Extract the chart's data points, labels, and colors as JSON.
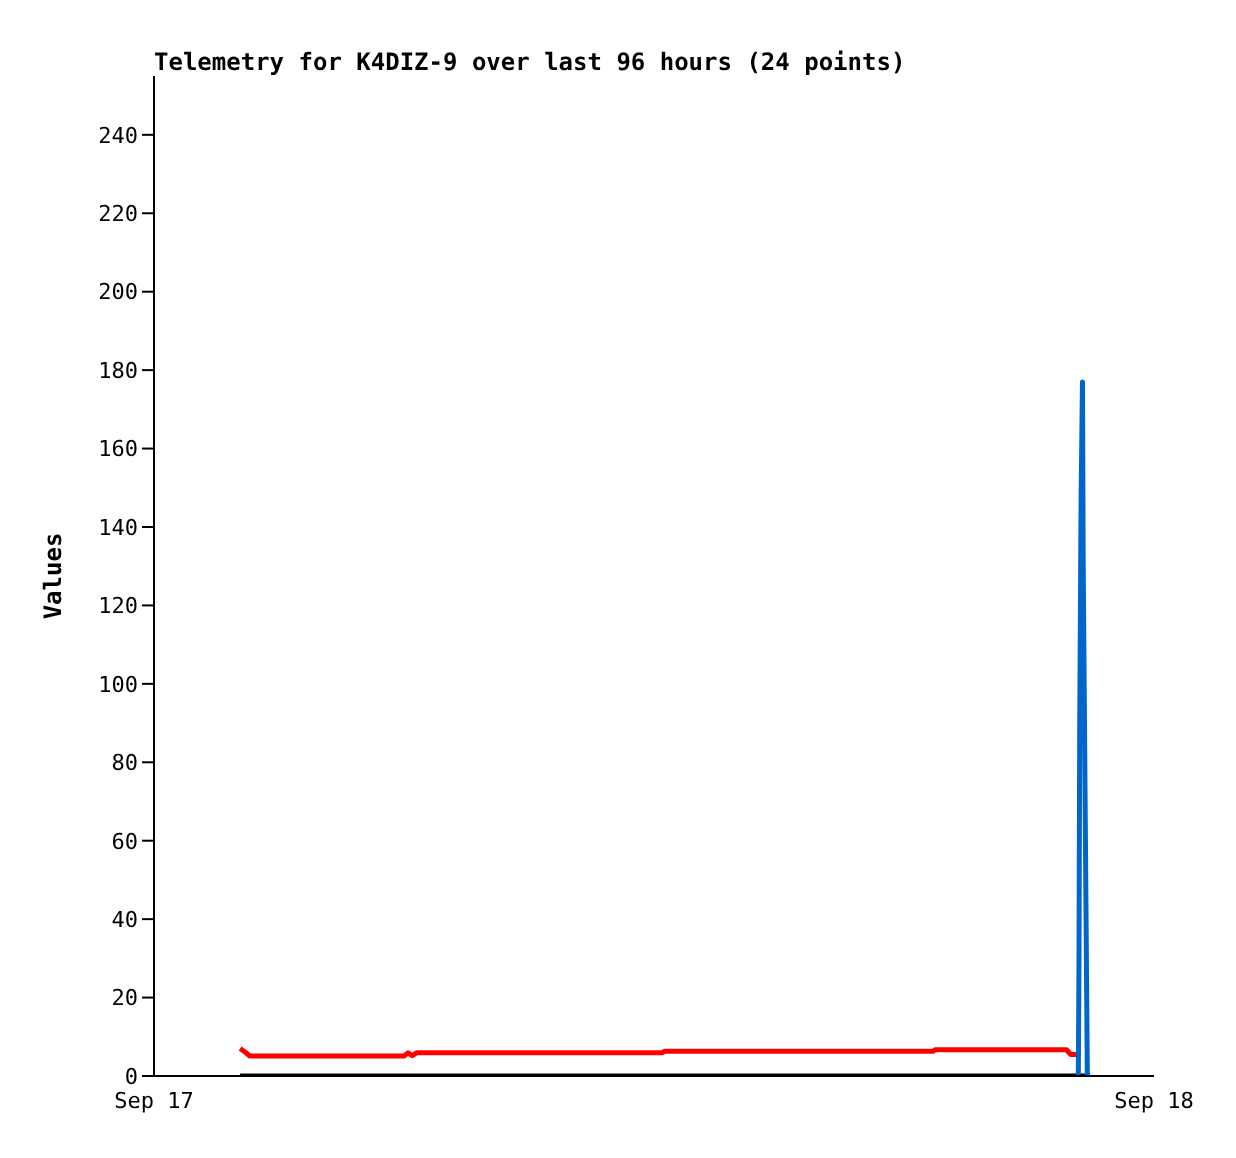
{
  "chart_data": {
    "type": "line",
    "title": "Telemetry for K4DIZ-9 over last 96 hours (24 points)",
    "ylabel": "Values",
    "xlim": [
      "--09-17",
      "--09-18"
    ],
    "xticks": [
      {
        "value": "--09-17",
        "label": "Sep 17"
      },
      {
        "value": "--09-18",
        "label": "Sep 18"
      }
    ],
    "ylim": [
      0,
      255
    ],
    "yticks": [
      0,
      20,
      40,
      60,
      80,
      100,
      120,
      140,
      160,
      180,
      200,
      220,
      240
    ],
    "marker": "none",
    "line_style": "solid",
    "series": [
      {
        "color": "#000000",
        "x": [
          "--09-17T02:04",
          "--09-17T22:28"
        ],
        "values": [
          0,
          0
        ]
      },
      {
        "color": "#ff0000",
        "x": [
          "--09-17T02:04",
          "--09-17T02:12",
          "--09-17T02:18",
          "--09-17T06:00",
          "--09-17T06:06",
          "--09-17T06:12",
          "--09-17T06:18",
          "--09-17T12:12",
          "--09-17T12:15",
          "--09-17T18:42",
          "--09-17T18:45",
          "--09-17T21:54",
          "--09-17T22:00",
          "--09-17T22:12"
        ],
        "values": [
          7,
          6,
          5.1,
          5.1,
          5.9,
          5.2,
          5.9,
          5.9,
          6.3,
          6.3,
          6.7,
          6.7,
          5.5,
          5.5
        ]
      },
      {
        "color": "#0066cc",
        "x": [
          "--09-17T22:11",
          "--09-17T22:12",
          "--09-17T22:13",
          "--09-17T22:15",
          "--09-17T22:17",
          "--09-17T22:18",
          "--09-17T22:20",
          "--09-17T22:22",
          "--09-17T22:24",
          "--09-17T22:28"
        ],
        "values": [
          0,
          30,
          88,
          147,
          177,
          132,
          88,
          44,
          0,
          0
        ]
      }
    ]
  }
}
